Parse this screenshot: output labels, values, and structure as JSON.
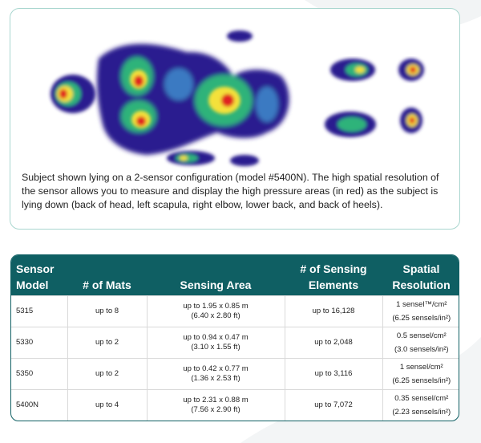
{
  "caption": "Subject shown lying on a 2-sensor configuration (model #5400N).  The high spatial resolution of the sensor allows you to measure and display the high pressure areas (in red) as the subject is lying down (back of head, left scapula, right elbow, lower back, and back of heels).",
  "table": {
    "headers": {
      "model_l1": "Sensor",
      "model_l2": "Model",
      "mats": "# of Mats",
      "area": "Sensing Area",
      "elements_l1": "# of Sensing",
      "elements_l2": "Elements",
      "res_l1": "Spatial",
      "res_l2": "Resolution"
    },
    "rows": [
      {
        "model": "5315",
        "mats": "up to 8",
        "area_m": "up to 1.95 x 0.85 m",
        "area_ft": "(6.40 x 2.80 ft)",
        "elements": "up to 16,128",
        "res_cm": "1 sensel™/cm²",
        "res_in": "(6.25 sensels/in²)"
      },
      {
        "model": "5330",
        "mats": "up to 2",
        "area_m": "up to 0.94 x 0.47 m",
        "area_ft": "(3.10 x 1.55 ft)",
        "elements": "up to 2,048",
        "res_cm": "0.5 sensel/cm²",
        "res_in": "(3.0 sensels/in²)"
      },
      {
        "model": "5350",
        "mats": "up to 2",
        "area_m": "up to 0.42 x 0.77 m",
        "area_ft": "(1.36 x 2.53 ft)",
        "elements": "up to 3,116",
        "res_cm": "1 sensel/cm²",
        "res_in": "(6.25 sensels/in²)"
      },
      {
        "model": "5400N",
        "mats": "up to 4",
        "area_m": "up to 2.31 x 0.88 m",
        "area_ft": "(7.56 x 2.90 ft)",
        "elements": "up to 7,072",
        "res_cm": "0.35 sensel/cm²",
        "res_in": "(2.23 sensels/in²)"
      }
    ]
  },
  "colors": {
    "header_bg": "#0f5f63",
    "panel_border": "#a9d6cf",
    "heat_low": "#2a1f8f",
    "heat_mid": "#2fb37a",
    "heat_high": "#f4e13a",
    "heat_peak": "#e02020"
  }
}
